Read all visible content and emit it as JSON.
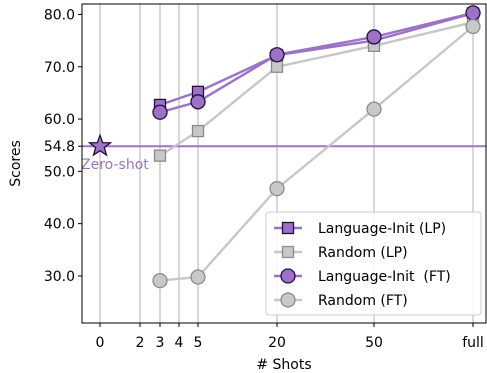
{
  "chart_data": {
    "type": "line",
    "xlabel": "# Shots",
    "ylabel": "Scores",
    "x_ticks": [
      "0",
      "2",
      "3",
      "4",
      "5",
      "20",
      "50",
      "full"
    ],
    "y_ticks": [
      30.0,
      40.0,
      50.0,
      54.8,
      60.0,
      70.0,
      80.0
    ],
    "y_tick_labels": [
      "30.0",
      "40.0",
      "50.0",
      "54.8",
      "60.0",
      "70.0",
      "80.0"
    ],
    "ylim": [
      21,
      82
    ],
    "grid": "vertical lines at x ticks",
    "legend_position": "lower-right",
    "zero_shot": {
      "label": "Zero-shot",
      "value": 54.8,
      "x": "0"
    },
    "x": [
      "3",
      "5",
      "20",
      "50",
      "full"
    ],
    "series": [
      {
        "name": "Language-Init (LP)",
        "marker": "square",
        "values": [
          62.7,
          65.2,
          72.2,
          75.0,
          80.2
        ]
      },
      {
        "name": "Random (LP)",
        "marker": "square",
        "values": [
          53.0,
          57.7,
          70.0,
          74.0,
          78.5
        ]
      },
      {
        "name": "Language-Init  (FT)",
        "marker": "circle",
        "values": [
          61.3,
          63.3,
          72.3,
          75.7,
          80.3
        ]
      },
      {
        "name": "Random (FT)",
        "marker": "circle",
        "values": [
          29.1,
          29.8,
          46.7,
          61.9,
          77.7
        ]
      }
    ]
  },
  "colors": {
    "language_init_line": "#9c72c7",
    "language_init_fill": "#9c72c7",
    "language_init_edge": "#2b0a44",
    "random_line": "#c7c7c7",
    "random_fill": "#c8c8c8",
    "random_edge": "#8a8a8a",
    "zero_shot": "#9e74c9",
    "grid": "#b0b0b0"
  }
}
